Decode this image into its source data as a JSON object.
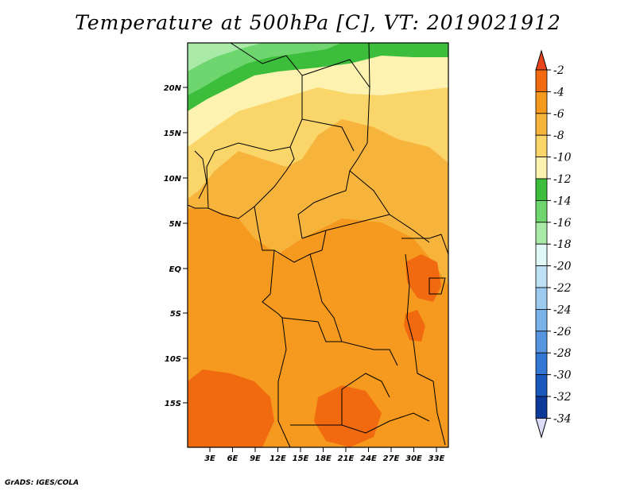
{
  "title": "Temperature at 500hPa [C], VT: 2019021912",
  "credit": "GrADS: IGES/COLA",
  "lat_labels": [
    "20N",
    "15N",
    "10N",
    "5N",
    "EQ",
    "5S",
    "10S",
    "15S"
  ],
  "lon_labels": [
    "3E",
    "6E",
    "9E",
    "12E",
    "15E",
    "18E",
    "21E",
    "24E",
    "27E",
    "30E",
    "33E"
  ],
  "colorbar": {
    "labels": [
      "-2",
      "-4",
      "-6",
      "-8",
      "-10",
      "-12",
      "-14",
      "-16",
      "-18",
      "-20",
      "-22",
      "-24",
      "-26",
      "-28",
      "-30",
      "-32",
      "-34"
    ],
    "colors": [
      "#e8451c",
      "#f26a10",
      "#f59a1e",
      "#f7b43c",
      "#fad66a",
      "#fdf2b0",
      "#3cbd3c",
      "#6fd66f",
      "#a9eaa9",
      "#e0f8f6",
      "#bde0f5",
      "#9dcbf0",
      "#7ab2ea",
      "#5696e0",
      "#3377d4",
      "#1a58bd",
      "#0d3a9a",
      "#0a1a66"
    ],
    "min_arrow_color": "#dcdcf8",
    "max_arrow_color": "#e8451c"
  },
  "field_colors": {
    "warm": "#f26a10",
    "orange": "#f59a1e",
    "lightorange": "#f7b43c",
    "yellow": "#fad66a",
    "paleyellow": "#fdf2b0",
    "green": "#3cbd3c",
    "lightgreen": "#6fd66f",
    "palegreen": "#a9eaa9"
  }
}
